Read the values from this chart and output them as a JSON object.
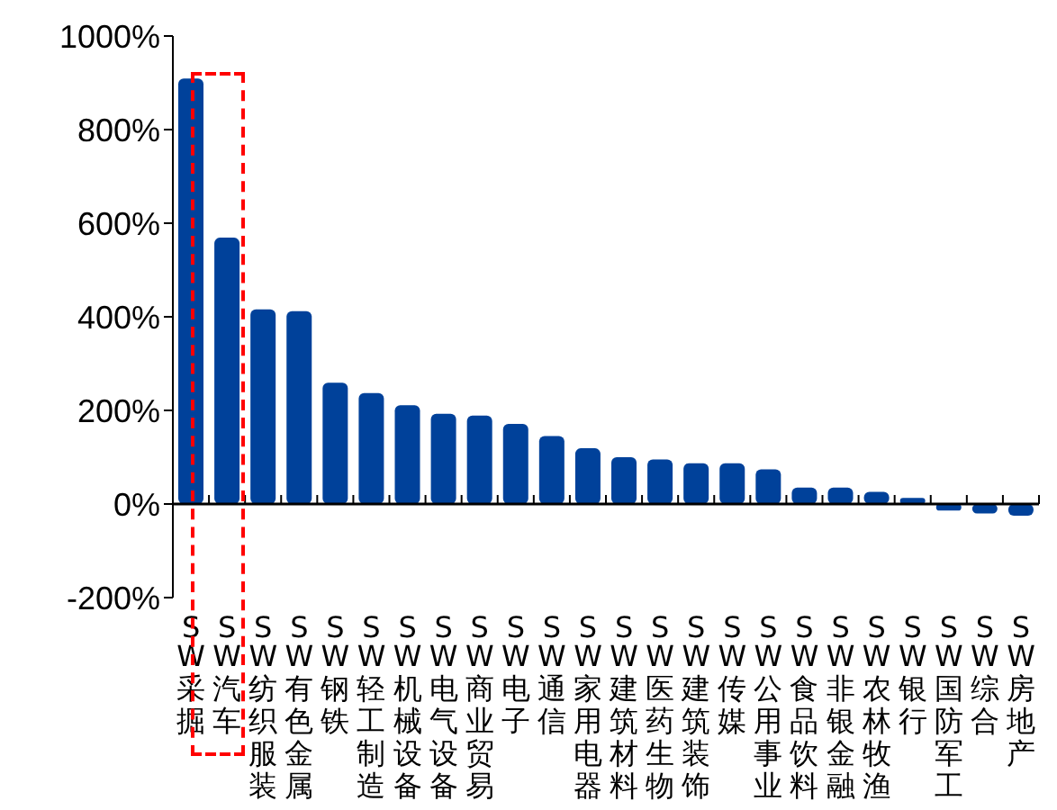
{
  "chart_data": {
    "type": "bar",
    "categories": [
      "SW采掘",
      "SW汽车",
      "SW纺织服装",
      "SW有色金属",
      "SW钢铁",
      "SW轻工制造",
      "SW机械设备",
      "SW电气设备",
      "SW商业贸易",
      "SW电子",
      "SW通信",
      "SW家用电器",
      "SW建筑材料",
      "SW医药生物",
      "SW建筑装饰",
      "SW传媒",
      "SW公用事业",
      "SW食品饮料",
      "SW非银金融",
      "SW农林牧渔",
      "SW银行",
      "SW国防军工",
      "SW综合",
      "SW房地产"
    ],
    "values": [
      909,
      569,
      416,
      412,
      259,
      237,
      211,
      193,
      189,
      171,
      145,
      119,
      100,
      95,
      87,
      87,
      74,
      35,
      35,
      26,
      13,
      -14,
      -20,
      -25
    ],
    "color": "#00419a",
    "ylim": [
      -200,
      1000
    ],
    "yticks": [
      {
        "value": -200,
        "label": "-200%"
      },
      {
        "value": 0,
        "label": "0%"
      },
      {
        "value": 200,
        "label": "200%"
      },
      {
        "value": 400,
        "label": "400%"
      },
      {
        "value": 600,
        "label": "600%"
      },
      {
        "value": 800,
        "label": "800%"
      },
      {
        "value": 1000,
        "label": "1000%"
      }
    ],
    "ref_lines": [
      {
        "axis": "y",
        "value": 0,
        "color": "#000000"
      }
    ],
    "grid": false,
    "legend": false
  }
}
